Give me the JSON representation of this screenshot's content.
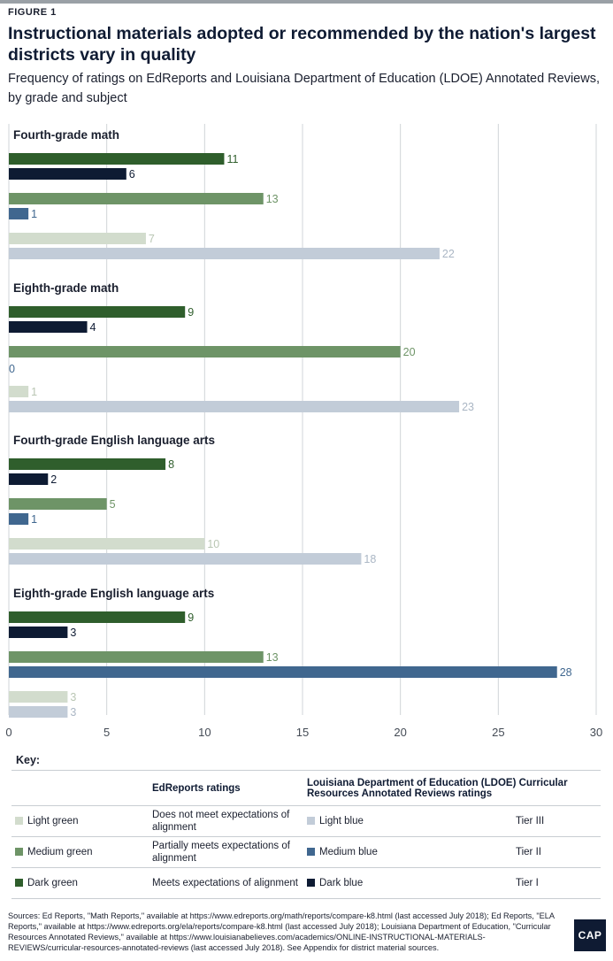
{
  "figure_label": "FIGURE 1",
  "title": "Instructional materials adopted or recommended by the nation's largest districts vary in quality",
  "subtitle": "Frequency of ratings on EdReports and Louisiana Department of Education (LDOE) Annotated Reviews, by grade and subject",
  "colors": {
    "light_green": "#d2dccd",
    "medium_green": "#6e9467",
    "dark_green": "#2f5e2c",
    "light_blue": "#c2ccd8",
    "medium_blue": "#40678f",
    "dark_blue": "#0e1b33"
  },
  "chart_data": {
    "type": "bar",
    "orientation": "horizontal",
    "xlim": [
      0,
      30
    ],
    "xticks": [
      "0",
      "5",
      "10",
      "15",
      "20",
      "25",
      "30"
    ],
    "grid": true,
    "groups": [
      {
        "label": "Fourth-grade math",
        "bars": [
          {
            "series": "Dark green",
            "value": 11
          },
          {
            "series": "Dark blue",
            "value": 6
          },
          {
            "series": "Medium green",
            "value": 13
          },
          {
            "series": "Medium blue",
            "value": 1
          },
          {
            "series": "Light green",
            "value": 7
          },
          {
            "series": "Light blue",
            "value": 22
          }
        ]
      },
      {
        "label": "Eighth-grade math",
        "bars": [
          {
            "series": "Dark green",
            "value": 9
          },
          {
            "series": "Dark blue",
            "value": 4
          },
          {
            "series": "Medium green",
            "value": 20
          },
          {
            "series": "Medium blue",
            "value": 0
          },
          {
            "series": "Light green",
            "value": 1
          },
          {
            "series": "Light blue",
            "value": 23
          }
        ]
      },
      {
        "label": "Fourth-grade English language arts",
        "bars": [
          {
            "series": "Dark green",
            "value": 8
          },
          {
            "series": "Dark blue",
            "value": 2
          },
          {
            "series": "Medium green",
            "value": 5
          },
          {
            "series": "Medium blue",
            "value": 1
          },
          {
            "series": "Light green",
            "value": 10
          },
          {
            "series": "Light blue",
            "value": 18
          }
        ]
      },
      {
        "label": "Eighth-grade English language arts",
        "bars": [
          {
            "series": "Dark green",
            "value": 9
          },
          {
            "series": "Dark blue",
            "value": 3
          },
          {
            "series": "Medium green",
            "value": 13
          },
          {
            "series": "Medium blue",
            "value": 28
          },
          {
            "series": "Light green",
            "value": 3
          },
          {
            "series": "Light blue",
            "value": 3
          }
        ]
      }
    ]
  },
  "key": {
    "label": "Key:",
    "edreports_header": "EdReports ratings",
    "ldoe_header": "Louisiana Department of Education (LDOE) Curricular Resources Annotated Reviews ratings",
    "rows": [
      {
        "green_name": "Light green",
        "green_color": "#d2dccd",
        "edreports": "Does not meet expectations of alignment",
        "blue_name": "Light blue",
        "blue_color": "#c2ccd8",
        "tier": "Tier III"
      },
      {
        "green_name": "Medium green",
        "green_color": "#6e9467",
        "edreports": "Partially meets expectations of alignment",
        "blue_name": "Medium blue",
        "blue_color": "#40678f",
        "tier": "Tier II"
      },
      {
        "green_name": "Dark green",
        "green_color": "#2f5e2c",
        "edreports": "Meets expectations of alignment",
        "blue_name": "Dark blue",
        "blue_color": "#0e1b33",
        "tier": "Tier I"
      }
    ]
  },
  "sources": "Sources: Ed Reports, \"Math Reports,\" available at https://www.edreports.org/math/reports/compare-k8.html (last accessed July 2018); Ed Reports, \"ELA Reports,\" available at https://www.edreports.org/ela/reports/compare-k8.html (last accessed July 2018); Louisiana Department of Education, \"Curricular Resources Annotated Reviews,\" available at https://www.louisianabelieves.com/academics/ONLINE-INSTRUCTIONAL-MATERIALS- REVIEWS/curricular-resources-annotated-reviews (last accessed July 2018). See Appendix for district material sources.",
  "logo_text": "CAP"
}
